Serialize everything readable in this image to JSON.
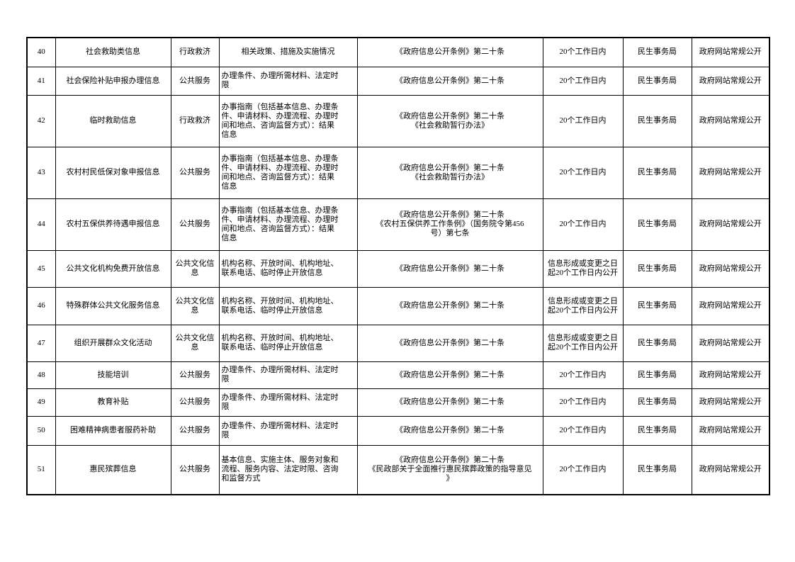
{
  "rows": [
    {
      "no": "40",
      "name": "社会救助类信息",
      "type": "行政救济",
      "content": "相关政策、措施及实施情况",
      "basis": "《政府信息公开条例》第二十条",
      "time": "20个工作日内",
      "dept": "民生事务局",
      "channel": "政府网站常规公开"
    },
    {
      "no": "41",
      "name": "社会保险补贴申报办理信息",
      "type": "公共服务",
      "content": "办理条件、办理所需材料、法定时\n限",
      "basis": "《政府信息公开条例》第二十条",
      "time": "20个工作日内",
      "dept": "民生事务局",
      "channel": "政府网站常规公开"
    },
    {
      "no": "42",
      "name": "临时救助信息",
      "type": "行政救济",
      "content": "办事指南（包括基本信息、办理条\n件、申请材料、办理流程、办理时\n间和地点、咨询监督方式）：结果\n信息",
      "basis": "《政府信息公开条例》第二十条\n《社会救助暂行办法》",
      "time": "20个工作日内",
      "dept": "民生事务局",
      "channel": "政府网站常规公开"
    },
    {
      "no": "43",
      "name": "农村村民低保对象申报信息",
      "type": "公共服务",
      "content": "办事指南（包括基本信息、办理条\n件、申请材料、办理流程、办理时\n间和地点、咨询监督方式）：结果\n信息",
      "basis": "《政府信息公开条例》第二十条\n《社会救助暂行办法》",
      "time": "20个工作日内",
      "dept": "民生事务局",
      "channel": "政府网站常规公开"
    },
    {
      "no": "44",
      "name": "农村五保供养待遇申报信息",
      "type": "公共服务",
      "content": "办事指南（包括基本信息、办理条\n件、申请材料、办理流程、办理时\n间和地点、咨询监督方式）：结果\n信息",
      "basis": "《政府信息公开条例》第二十条\n《农村五保供养工作条例》（国务院令第456\n号）第七条",
      "time": "20个工作日内",
      "dept": "民生事务局",
      "channel": "政府网站常规公开"
    },
    {
      "no": "45",
      "name": "公共文化机构免费开放信息",
      "type": "公共文化信\n息",
      "content": "机构名称、开放时间、机构地址、\n联系电话、临时停止开放信息",
      "basis": "《政府信息公开条例》第二十条",
      "time": "信息形成或变更之日\n起20个工作日内公开",
      "dept": "民生事务局",
      "channel": "政府网站常规公开"
    },
    {
      "no": "46",
      "name": "特殊群体公共文化服务信息",
      "type": "公共文化信\n息",
      "content": "机构名称、开放时间、机构地址、\n联系电话、临时停止开放信息",
      "basis": "《政府信息公开条例》第二十条",
      "time": "信息形成或变更之日\n起20个工作日内公开",
      "dept": "民生事务局",
      "channel": "政府网站常规公开"
    },
    {
      "no": "47",
      "name": "组织开展群众文化活动",
      "type": "公共文化信\n息",
      "content": "机构名称、开放时间、机构地址、\n联系电话、临时停止开放信息",
      "basis": "《政府信息公开条例》第二十条",
      "time": "信息形成或变更之日\n起20个工作日内公开",
      "dept": "民生事务局",
      "channel": "政府网站常规公开"
    },
    {
      "no": "48",
      "name": "技能培训",
      "type": "公共服务",
      "content": "办理条件、办理所需材料、法定时\n限",
      "basis": "《政府信息公开条例》第二十条",
      "time": "20个工作日内",
      "dept": "民生事务局",
      "channel": "政府网站常规公开"
    },
    {
      "no": "49",
      "name": "教育补贴",
      "type": "公共服务",
      "content": "办理条件、办理所需材料、法定时\n限",
      "basis": "《政府信息公开条例》第二十条",
      "time": "20个工作日内",
      "dept": "民生事务局",
      "channel": "政府网站常规公开"
    },
    {
      "no": "50",
      "name": "困难精神病患者服药补助",
      "type": "公共服务",
      "content": "办理条件、办理所需材料、法定时\n限",
      "basis": "《政府信息公开条例》第二十条",
      "time": "20个工作日内",
      "dept": "民生事务局",
      "channel": "政府网站常规公开"
    },
    {
      "no": "51",
      "name": "惠民殡葬信息",
      "type": "公共服务",
      "content": "基本信息、实施主体、服务对象和\n流程、服务内容、法定时限、咨询\n和监督方式",
      "basis": "《政府信息公开条例》第二十条\n《民政部关于全面推行惠民殡葬政策的指导意见\n》",
      "time": "20个工作日内",
      "dept": "民生事务局",
      "channel": "政府网站常规公开"
    }
  ]
}
